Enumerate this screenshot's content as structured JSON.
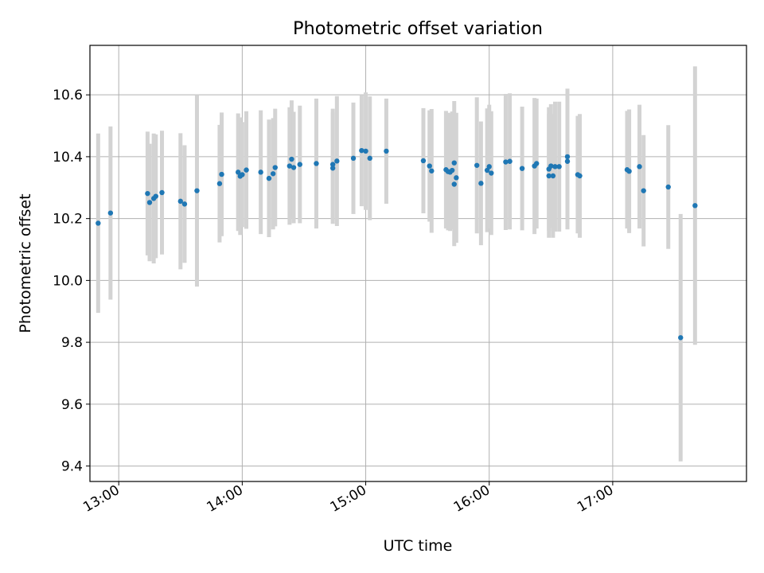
{
  "chart_data": {
    "type": "scatter",
    "title": "Photometric offset variation",
    "xlabel": "UTC time",
    "ylabel": "Photometric offset",
    "x_is_time": true,
    "xlim": [
      "12:46",
      "18:05"
    ],
    "ylim": [
      9.35,
      10.76
    ],
    "xticks": [
      "13:00",
      "14:00",
      "15:00",
      "16:00",
      "17:00"
    ],
    "yticks": [
      9.4,
      9.6,
      9.8,
      10.0,
      10.2,
      10.4,
      10.6
    ],
    "grid": true,
    "colors": {
      "point": "#1f77b4",
      "errorbar": "#d3d3d3",
      "grid": "#b0b0b0"
    },
    "series": [
      {
        "x": [
          "12:50",
          "12:56",
          "13:14",
          "13:15",
          "13:17",
          "13:18",
          "13:21",
          "13:30",
          "13:32",
          "13:38",
          "13:49",
          "13:50",
          "13:58",
          "13:59",
          "14:00",
          "14:02",
          "14:09",
          "14:13",
          "14:15",
          "14:16",
          "14:23",
          "14:24",
          "14:25",
          "14:28",
          "14:36",
          "14:44",
          "14:44",
          "14:46",
          "14:54",
          "14:58",
          "15:00",
          "15:02",
          "15:10",
          "15:28",
          "15:31",
          "15:32",
          "15:39",
          "15:40",
          "15:41",
          "15:42",
          "15:43",
          "15:43",
          "15:44",
          "15:54",
          "15:56",
          "15:59",
          "16:00",
          "16:01",
          "16:08",
          "16:10",
          "16:16",
          "16:22",
          "16:23",
          "16:29",
          "16:29",
          "16:30",
          "16:31",
          "16:32",
          "16:34",
          "16:38",
          "16:38",
          "16:43",
          "16:44",
          "17:07",
          "17:08",
          "17:13",
          "17:15",
          "17:27",
          "17:33",
          "17:40"
        ],
        "y": [
          10.185,
          10.218,
          10.281,
          10.252,
          10.265,
          10.272,
          10.284,
          10.256,
          10.247,
          10.29,
          10.313,
          10.343,
          10.35,
          10.337,
          10.342,
          10.357,
          10.35,
          10.33,
          10.345,
          10.365,
          10.37,
          10.392,
          10.365,
          10.375,
          10.378,
          10.375,
          10.363,
          10.386,
          10.395,
          10.42,
          10.418,
          10.395,
          10.418,
          10.387,
          10.37,
          10.354,
          10.358,
          10.352,
          10.35,
          10.356,
          10.38,
          10.311,
          10.332,
          10.372,
          10.314,
          10.356,
          10.368,
          10.347,
          10.383,
          10.385,
          10.362,
          10.37,
          10.378,
          10.338,
          10.36,
          10.37,
          10.338,
          10.368,
          10.368,
          10.385,
          10.4,
          10.342,
          10.338,
          10.358,
          10.353,
          10.368,
          10.29,
          10.302,
          9.815,
          10.242
        ],
        "yerr": [
          0.29,
          0.28,
          0.2,
          0.19,
          0.21,
          0.2,
          0.2,
          0.22,
          0.19,
          0.31,
          0.19,
          0.2,
          0.19,
          0.19,
          0.17,
          0.19,
          0.2,
          0.19,
          0.18,
          0.19,
          0.19,
          0.19,
          0.18,
          0.19,
          0.21,
          0.18,
          0.18,
          0.21,
          0.18,
          0.18,
          0.19,
          0.2,
          0.17,
          0.17,
          0.18,
          0.2,
          0.19,
          0.19,
          0.19,
          0.19,
          0.2,
          0.2,
          0.21,
          0.22,
          0.2,
          0.2,
          0.2,
          0.2,
          0.22,
          0.22,
          0.2,
          0.22,
          0.21,
          0.2,
          0.2,
          0.2,
          0.2,
          0.21,
          0.21,
          0.22,
          0.22,
          0.19,
          0.2,
          0.19,
          0.2,
          0.2,
          0.18,
          0.2,
          0.4,
          0.45
        ]
      }
    ]
  }
}
